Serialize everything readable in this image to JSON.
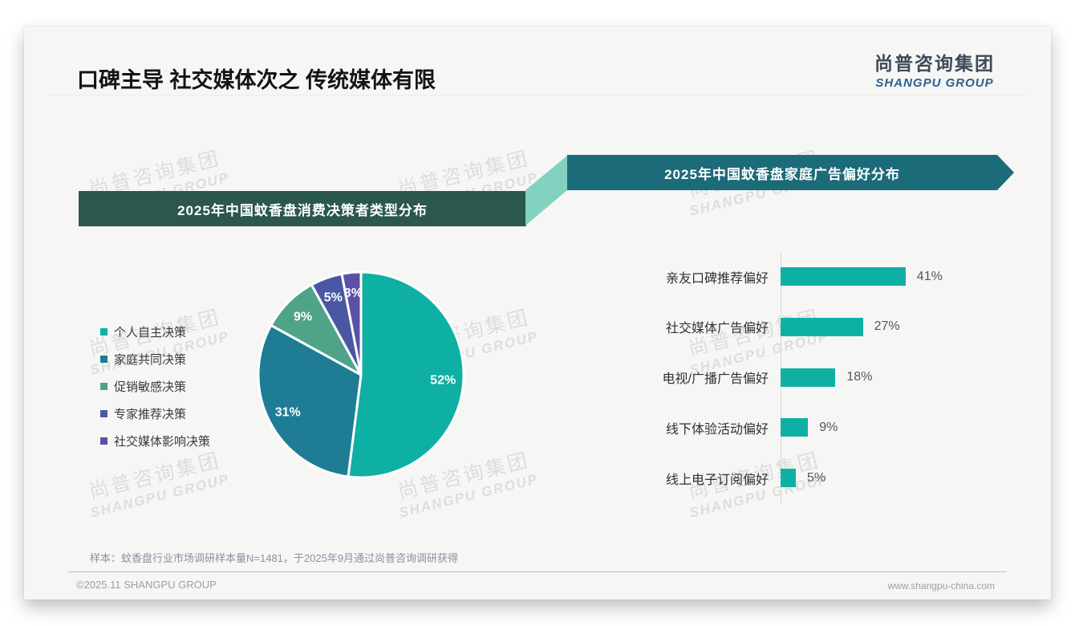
{
  "page": {
    "title": "口碑主导 社交媒体次之 传统媒体有限",
    "logo": {
      "cn": "尚普咨询集团",
      "en": "SHANGPU GROUP"
    },
    "watermark": {
      "line1": "尚普咨询集团",
      "line2": "SHANGPU GROUP"
    },
    "footnote": "样本：蚊香盘行业市场调研样本量N=1481，于2025年9月通过尚普咨询调研获得",
    "footer": {
      "left": "©2025.11 SHANGPU GROUP",
      "right": "www.shangpu-china.com"
    }
  },
  "colors": {
    "accent_teal": "#0fb0a4",
    "banner_left_bg": "#2b574d",
    "banner_right_bg": "#1c6b79",
    "connector_mint": "#82d2bf",
    "logo_cn": "#3e4a59",
    "logo_en": "#2d6090"
  },
  "chart_data": [
    {
      "type": "pie",
      "title": "2025年中国蚊香盘消费决策者类型分布",
      "categories": [
        "个人自主决策",
        "家庭共同决策",
        "促销敏感决策",
        "专家推荐决策",
        "社交媒体影响决策"
      ],
      "values": [
        52,
        31,
        9,
        5,
        3
      ],
      "labels": [
        "52%",
        "31%",
        "9%",
        "5%",
        "3%"
      ],
      "unit": "%",
      "colors": [
        "#0fb0a4",
        "#1e7d95",
        "#4ea389",
        "#4a58a4",
        "#5c50a6"
      ],
      "legend_position": "left",
      "start_angle": "top",
      "direction": "clockwise"
    },
    {
      "type": "bar",
      "title": "2025年中国蚊香盘家庭广告偏好分布",
      "orientation": "horizontal",
      "categories": [
        "亲友口碑推荐偏好",
        "社交媒体广告偏好",
        "电视/广播广告偏好",
        "线下体验活动偏好",
        "线上电子订阅偏好"
      ],
      "values": [
        41,
        27,
        18,
        9,
        5
      ],
      "value_labels": [
        "41%",
        "27%",
        "18%",
        "9%",
        "5%"
      ],
      "unit": "%",
      "bar_color": "#0fb0a4",
      "xlim": [
        0,
        45
      ],
      "grid": false,
      "axis_line": true
    }
  ]
}
